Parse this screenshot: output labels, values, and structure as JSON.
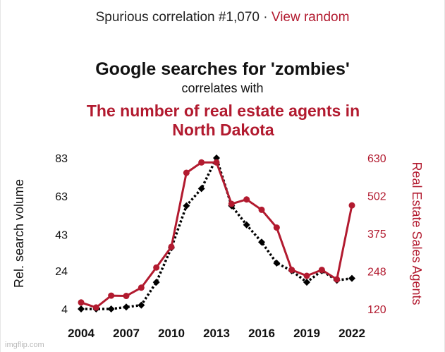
{
  "header": {
    "label": "Spurious correlation #1,070 · ",
    "link": "View random"
  },
  "chart_data": {
    "type": "line",
    "title": "Google searches for 'zombies'",
    "subtitle": "correlates with",
    "title2": "The number of real estate agents in North Dakota",
    "x": [
      2004,
      2005,
      2006,
      2007,
      2008,
      2009,
      2010,
      2011,
      2012,
      2013,
      2014,
      2015,
      2016,
      2017,
      2018,
      2019,
      2020,
      2021,
      2022
    ],
    "xticks": [
      "2004",
      "2007",
      "2010",
      "2013",
      "2016",
      "2019",
      "2022"
    ],
    "xtick_values": [
      2004,
      2007,
      2010,
      2013,
      2016,
      2019,
      2022
    ],
    "left_axis": {
      "label": "Rel. search volume",
      "ticks": [
        "83",
        "63",
        "43",
        "24",
        "4"
      ],
      "tick_values": [
        83,
        63,
        43,
        24,
        4
      ],
      "ylim": [
        4,
        83
      ]
    },
    "right_axis": {
      "label": "Real Estate Sales Agents",
      "ticks": [
        "630",
        "502",
        "375",
        "248",
        "120"
      ],
      "tick_values": [
        630,
        502,
        375,
        248,
        120
      ],
      "ylim": [
        120,
        630
      ]
    },
    "series": [
      {
        "axis": "left",
        "color": "#000000",
        "style": "dotted",
        "marker": "diamond",
        "values": [
          4,
          4,
          4,
          5,
          6,
          18,
          36,
          58,
          67,
          83,
          58,
          48,
          39,
          28,
          24,
          18,
          24,
          19,
          20
        ]
      },
      {
        "axis": "right",
        "color": "#b21a2f",
        "style": "solid",
        "marker": "circle",
        "values": [
          142,
          125,
          165,
          164,
          192,
          260,
          330,
          580,
          615,
          615,
          475,
          490,
          455,
          395,
          252,
          232,
          252,
          220,
          470
        ]
      }
    ],
    "grid": false,
    "legend": "none"
  },
  "watermark": "imgflip.com"
}
